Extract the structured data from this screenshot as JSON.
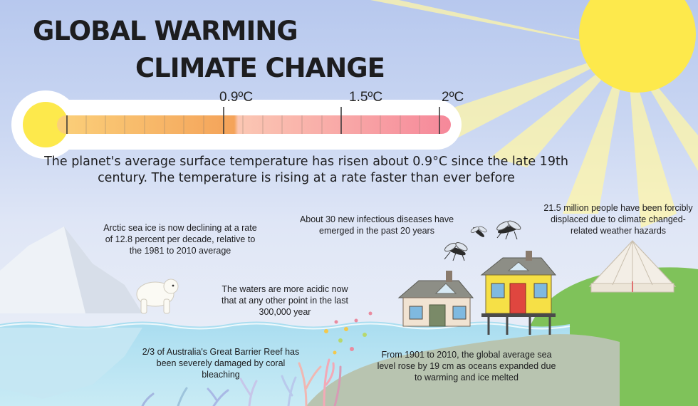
{
  "title": {
    "line1": "GLOBAL WARMING",
    "line2": "CLIMATE CHANGE"
  },
  "thermometer": {
    "marks": [
      "0.9ºC",
      "1.5ºC",
      "2ºC"
    ],
    "fill_fraction": 0.45
  },
  "intro": "The planet's average surface temperature has risen about 0.9°C since the late 19th century. The temperature is rising at a rate faster than ever before",
  "facts": {
    "arctic": "Arctic sea ice is now declining at a rate of 12.8 percent per decade, relative to the 1981 to 2010 average",
    "diseases": "About 30 new infectious diseases have emerged in the past 20 years",
    "displaced": "21.5 million people have been forcibly displaced due to climate changed-related weather hazards",
    "acidic": "The waters are more acidic now that at any other point in the last 300,000 year",
    "reef": "2/3 of Australia's Great Barrier Reef has been severely damaged by coral bleaching",
    "sea_level": "From 1901 to 2010, the global average sea level rose by 19 cm as oceans expanded due to warming and ice melted"
  },
  "colors": {
    "sun": "#fde94c",
    "ocean": "#a8dcef",
    "hill_left": "#b8c4b0",
    "hill_right": "#7fc25a",
    "thermo_warm": "#f4a35a",
    "thermo_hot": "#f7889a"
  }
}
